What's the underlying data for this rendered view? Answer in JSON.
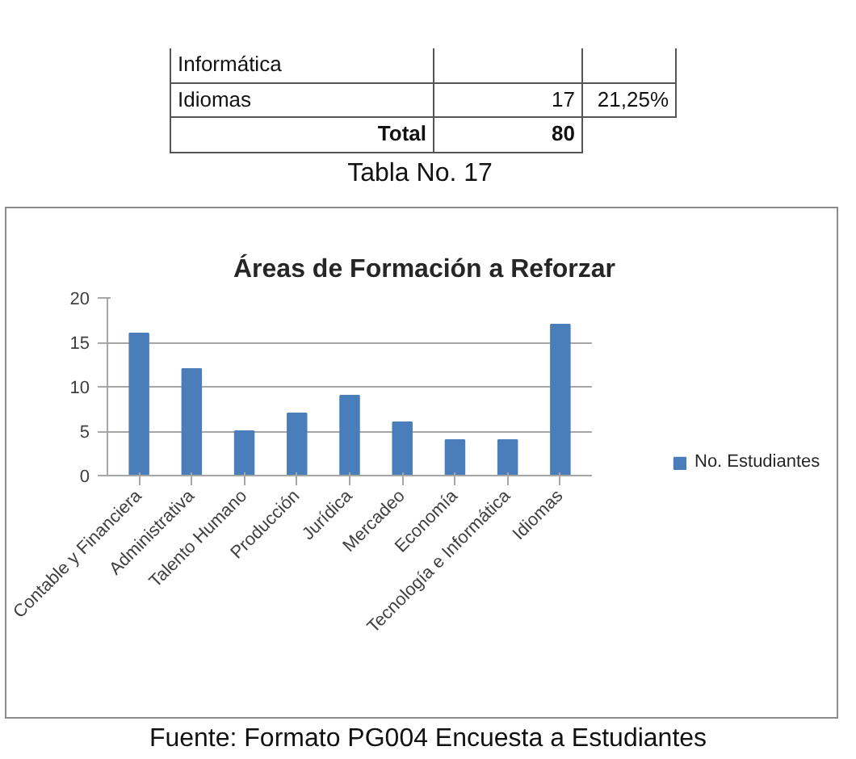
{
  "chart_data": {
    "type": "bar",
    "title": "Áreas de Formación a Reforzar",
    "categories": [
      "Contable y Financiera",
      "Administrativa",
      "Talento Humano",
      "Producción",
      "Jurídica",
      "Mercadeo",
      "Economía",
      "Tecnología e Informática",
      "Idiomas"
    ],
    "series": [
      {
        "name": "No. Estudiantes",
        "color": "#4a7ebb",
        "values": [
          16,
          12,
          5,
          7,
          9,
          6,
          4,
          4,
          17
        ]
      }
    ],
    "ylim": [
      0,
      20
    ],
    "yticks": [
      0,
      5,
      10,
      15,
      20
    ],
    "grid": "y",
    "legend": "right",
    "annotations": [
      "Informática",
      "Idiomas",
      "17",
      "21,25%",
      "Total",
      "80",
      "Tabla No. 17",
      "Fuente: Formato PG004 Encuesta a Estudiantes"
    ]
  }
}
